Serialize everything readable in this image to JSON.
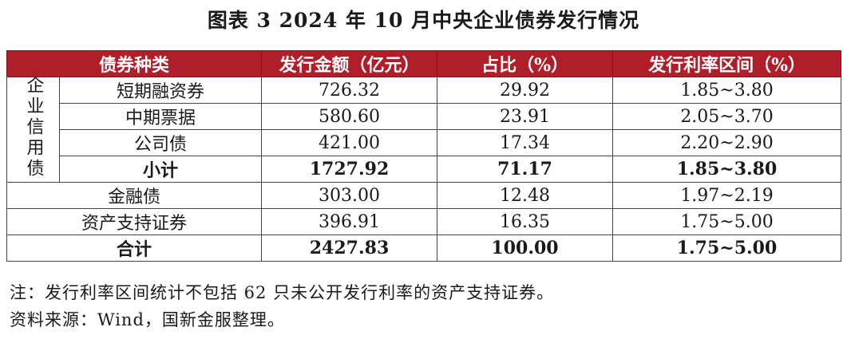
{
  "title": "图表 3  2024 年 10 月中央企业债券发行情况",
  "headers": [
    "债券种类",
    "发行金额（亿元）",
    "占比（%）",
    "发行利率区间（%）"
  ],
  "group_label": "企业信用债",
  "group_rows": [
    {
      "name": "短期融资券",
      "amount": "726.32",
      "share": "29.92",
      "range": "1.85~3.80"
    },
    {
      "name": "中期票据",
      "amount": "580.60",
      "share": "23.91",
      "range": "2.05~3.70"
    },
    {
      "name": "公司债",
      "amount": "421.00",
      "share": "17.34",
      "range": "2.20~2.90"
    }
  ],
  "subtotal": {
    "name": "小计",
    "amount": "1727.92",
    "share": "71.17",
    "range": "1.85~3.80"
  },
  "other_rows": [
    {
      "name": "金融债",
      "amount": "303.00",
      "share": "12.48",
      "range": "1.97~2.19"
    },
    {
      "name": "资产支持证券",
      "amount": "396.91",
      "share": "16.35",
      "range": "1.75~5.00"
    }
  ],
  "total": {
    "name": "合计",
    "amount": "2427.83",
    "share": "100.00",
    "range": "1.75~5.00"
  },
  "note": "注：发行利率区间统计不包括 62 只未公开发行利率的资产支持证券。",
  "source": "资料来源：Wind，国新金服整理。"
}
